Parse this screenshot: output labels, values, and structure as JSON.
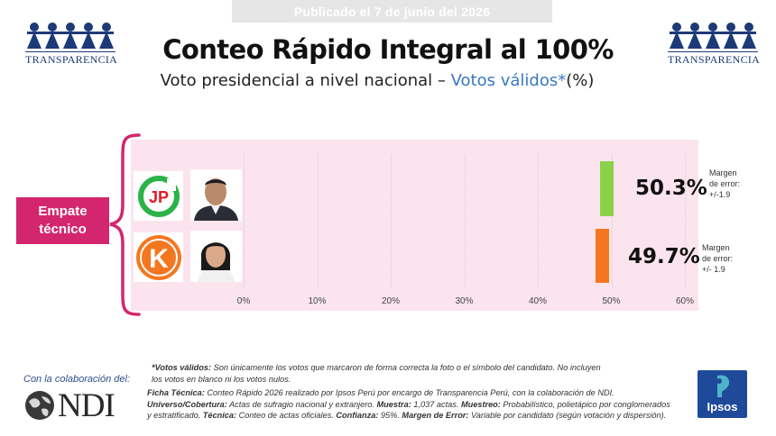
{
  "banner": {
    "text": "Publicado el 7 de junio del 2026"
  },
  "logos": {
    "transparencia_text": "TRANSPARENCIA",
    "ndi_text": "NDI",
    "ipsos_text": "Ipsos"
  },
  "header": {
    "title": "Conteo Rápido Integral al 100%",
    "subtitle_lead": "Voto presidencial a nivel nacional – ",
    "subtitle_highlight": "Votos válidos*",
    "subtitle_tail": "(%)"
  },
  "callout": {
    "line1": "Empate",
    "line2": "técnico"
  },
  "chart_data": {
    "type": "bar",
    "orientation": "horizontal",
    "categories": [
      "JP",
      "K"
    ],
    "values": [
      50.3,
      49.7
    ],
    "value_labels": [
      "50.3%",
      "49.7%"
    ],
    "colors": [
      "#8bd14a",
      "#f4771f"
    ],
    "xlim": [
      0,
      60
    ],
    "ticks": [
      0,
      10,
      20,
      30,
      40,
      50,
      60
    ],
    "tick_labels": [
      "0%",
      "10%",
      "20%",
      "30%",
      "40%",
      "50%",
      "60%"
    ],
    "grid": true,
    "margins": [
      {
        "l1": "Margen",
        "l2": "de error:",
        "l3": "+/-1.9"
      },
      {
        "l1": "Margen",
        "l2": "de error:",
        "l3": "+/- 1.9"
      }
    ]
  },
  "footer": {
    "collab": "Con la colaboración del:",
    "note_label": "*Votos válidos:",
    "note_text": " Son únicamente los votos que marcaron de forma correcta la foto o el símbolo del candidato. No incluyen",
    "note_text2": "los votos en blanco ni los votos nulos.",
    "ficha_label": "Ficha Técnica:",
    "ficha_text": " Conteo Rápido 2026 realizado por Ipsos Perú por encargo de Transparencia Perú, con la colaboración de NDI.",
    "universo_label": "Universo/Cobertura:",
    "universo_text": " Actas de sufragio nacional y extranjero. ",
    "muestra_label": "Muestra:",
    "muestra_text": " 1,037 actas. ",
    "muestreo_label": "Muestreo:",
    "muestreo_text": " Probabilístico, polietápico por conglomerados",
    "line3_text": "y estratificado. ",
    "tecnica_label": "Técnica:",
    "tecnica_text": " Conteo de actas oficiales. ",
    "confianza_label": "Confianza:",
    "confianza_text": " 95%. ",
    "error_label": "Margen de Error:",
    "error_text": " Variable por candidato (según votación y dispersión)."
  }
}
